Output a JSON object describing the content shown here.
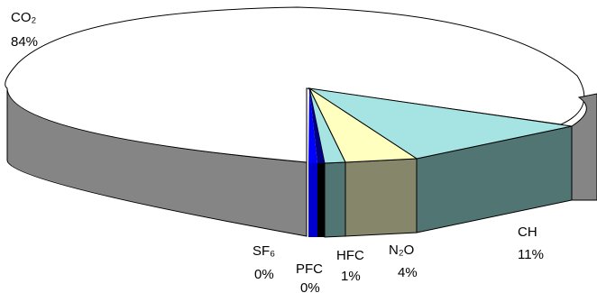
{
  "chart_data": {
    "type": "pie",
    "style": "3d-exploded",
    "categories": [
      "CO₂",
      "CH",
      "N₂O",
      "HFC",
      "PFC",
      "SF₆"
    ],
    "values": [
      84,
      11,
      4,
      1,
      0,
      0
    ],
    "value_labels": [
      "84%",
      "11%",
      "4%",
      "1%",
      "0%",
      "0%"
    ],
    "colors": {
      "CO₂": "#ffffff",
      "CH": "#a6e3e3",
      "N₂O": "#ffffc0",
      "HFC": "#a6e3e3",
      "PFC": "#000080",
      "SF₆": "#0000ff"
    },
    "side_colors": {
      "CO₂": "#858585",
      "CH": "#517572",
      "N₂O": "#86866a",
      "HFC": "#517572",
      "PFC": "#000000",
      "SF₆": "#0000cc"
    },
    "legend": "none"
  }
}
